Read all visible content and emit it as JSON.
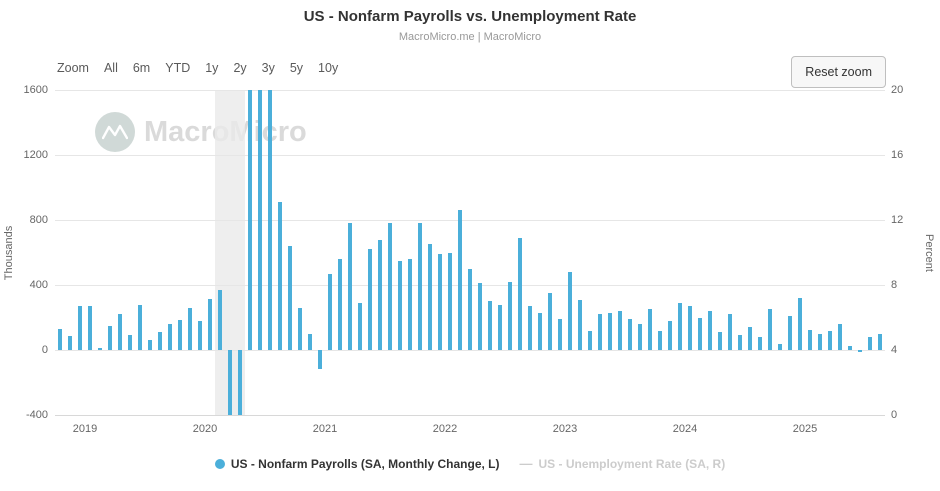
{
  "title": "US - Nonfarm Payrolls vs. Unemployment Rate",
  "subtitle": "MacroMicro.me | MacroMicro",
  "watermark_text": "MacroMicro",
  "toolbar": {
    "zoom_label": "Zoom",
    "zoom_options": [
      "All",
      "6m",
      "YTD",
      "1y",
      "2y",
      "3y",
      "5y",
      "10y"
    ],
    "reset_button": "Reset zoom"
  },
  "left_axis": {
    "title": "Thousands",
    "ticks": [
      "1600",
      "1200",
      "800",
      "400",
      "0",
      "-400"
    ],
    "min": -400,
    "max": 1600
  },
  "right_axis": {
    "title": "Percent",
    "ticks": [
      "20",
      "16",
      "12",
      "8",
      "4",
      "0"
    ],
    "min": 0,
    "max": 20
  },
  "x_axis": {
    "year_labels": [
      "2019",
      "2020",
      "2021",
      "2022",
      "2023",
      "2024",
      "2025"
    ]
  },
  "legend": [
    {
      "label": "US - Nonfarm Payrolls (SA, Monthly Change, L)",
      "marker": "circle",
      "color": "#4bafda",
      "enabled": true
    },
    {
      "label": "US - Unemployment Rate (SA, R)",
      "marker": "line",
      "color": "#cccccc",
      "enabled": false
    }
  ],
  "colors": {
    "bar": "#4bafda",
    "gridline": "#e6e6e6",
    "recession_band": "#eaeaea",
    "disabled_legend": "#cccccc",
    "title_text": "#333333",
    "muted_text": "#999999"
  },
  "chart_data": {
    "type": "bar",
    "title": "US - Nonfarm Payrolls vs. Unemployment Rate",
    "xlabel": "",
    "ylabel": "Thousands",
    "ylim": [
      -400,
      1600
    ],
    "y2label": "Percent",
    "y2lim": [
      0,
      20
    ],
    "grid": true,
    "legend_position": "bottom",
    "recession_band": {
      "from": "2020-02",
      "to": "2020-04"
    },
    "x": [
      "2018-10",
      "2018-11",
      "2018-12",
      "2019-01",
      "2019-02",
      "2019-03",
      "2019-04",
      "2019-05",
      "2019-06",
      "2019-07",
      "2019-08",
      "2019-09",
      "2019-10",
      "2019-11",
      "2019-12",
      "2020-01",
      "2020-02",
      "2020-03",
      "2020-04",
      "2020-05",
      "2020-06",
      "2020-07",
      "2020-08",
      "2020-09",
      "2020-10",
      "2020-11",
      "2020-12",
      "2021-01",
      "2021-02",
      "2021-03",
      "2021-04",
      "2021-05",
      "2021-06",
      "2021-07",
      "2021-08",
      "2021-09",
      "2021-10",
      "2021-11",
      "2021-12",
      "2022-01",
      "2022-02",
      "2022-03",
      "2022-04",
      "2022-05",
      "2022-06",
      "2022-07",
      "2022-08",
      "2022-09",
      "2022-10",
      "2022-11",
      "2022-12",
      "2023-01",
      "2023-02",
      "2023-03",
      "2023-04",
      "2023-05",
      "2023-06",
      "2023-07",
      "2023-08",
      "2023-09",
      "2023-10",
      "2023-11",
      "2023-12",
      "2024-01",
      "2024-02",
      "2024-03",
      "2024-04",
      "2024-05",
      "2024-06",
      "2024-07",
      "2024-08",
      "2024-09",
      "2024-10",
      "2024-11",
      "2024-12",
      "2025-01",
      "2025-02",
      "2025-03",
      "2025-04",
      "2025-05",
      "2025-06",
      "2025-07",
      "2025-08"
    ],
    "series": [
      {
        "name": "US - Nonfarm Payrolls (SA, Monthly Change, L)",
        "axis": "left",
        "values": [
          130,
          85,
          270,
          270,
          10,
          150,
          220,
          90,
          280,
          60,
          110,
          160,
          185,
          260,
          180,
          315,
          370,
          -1680,
          -20680,
          2830,
          4850,
          1720,
          910,
          640,
          260,
          100,
          -115,
          470,
          560,
          780,
          290,
          620,
          680,
          780,
          550,
          560,
          780,
          650,
          590,
          600,
          860,
          500,
          410,
          300,
          280,
          420,
          690,
          270,
          230,
          350,
          190,
          480,
          310,
          120,
          220,
          230,
          240,
          190,
          160,
          250,
          120,
          180,
          290,
          270,
          200,
          240,
          110,
          220,
          90,
          140,
          80,
          250,
          40,
          210,
          320,
          125,
          100,
          120,
          160,
          25,
          -15,
          80,
          100
        ]
      },
      {
        "name": "US - Unemployment Rate (SA, R)",
        "axis": "right",
        "values": [],
        "visible": false
      }
    ]
  }
}
